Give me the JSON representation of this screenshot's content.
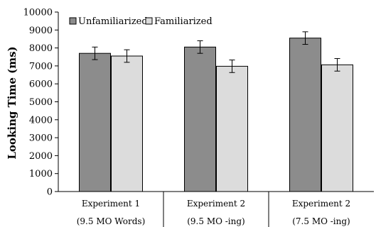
{
  "chart_data": {
    "type": "bar",
    "ylabel": "Looking Time (ms)",
    "xlabel": "",
    "ylim": [
      0,
      10000
    ],
    "yticks": [
      0,
      1000,
      2000,
      3000,
      4000,
      5000,
      6000,
      7000,
      8000,
      9000,
      10000
    ],
    "categories": [
      {
        "line1": "Experiment 1",
        "line2": "(9.5 MO Words)"
      },
      {
        "line1": "Experiment 2",
        "line2": "(9.5 MO -ing)"
      },
      {
        "line1": "Experiment 2",
        "line2": "(7.5 MO -ing)"
      }
    ],
    "series": [
      {
        "name": "Unfamiliarized",
        "color": "#8c8c8c",
        "values": [
          7700,
          8050,
          8550
        ],
        "errors": [
          350,
          350,
          350
        ]
      },
      {
        "name": "Familiarized",
        "color": "#dcdcdc",
        "values": [
          7550,
          6980,
          7060
        ],
        "errors": [
          350,
          350,
          350
        ]
      }
    ],
    "legend_position": "top-left",
    "grid": false
  }
}
